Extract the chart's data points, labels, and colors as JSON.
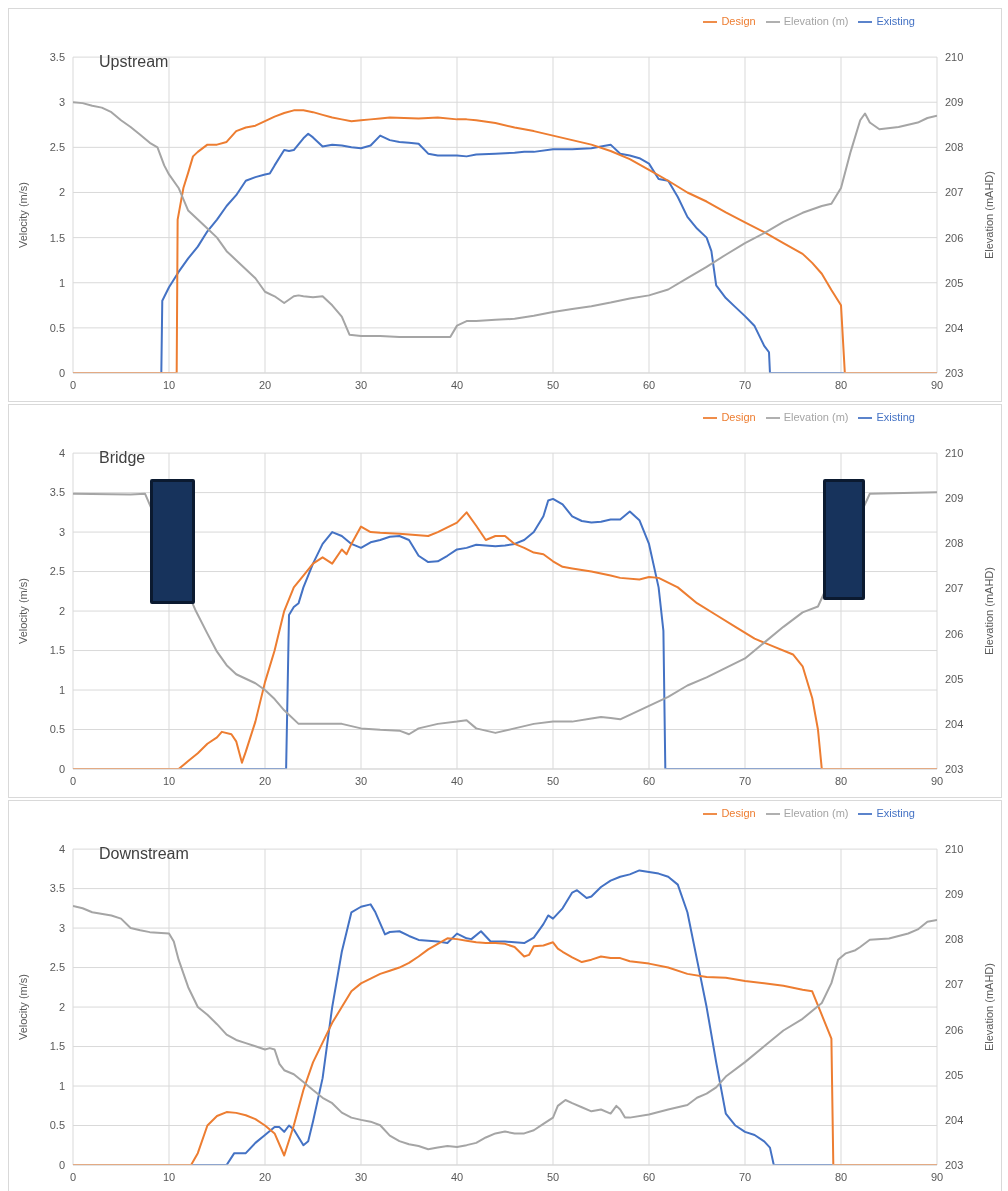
{
  "chart_data": [
    {
      "type": "line",
      "title": "Upstream",
      "ylabel": "Velocity (m/s)",
      "y2label": "Elevation (mAHD)",
      "xlim": [
        0,
        90
      ],
      "xticks": [
        0,
        10,
        20,
        30,
        40,
        50,
        60,
        70,
        80,
        90
      ],
      "ylim": [
        0,
        3.5
      ],
      "yticks": [
        0,
        0.5,
        1,
        1.5,
        2,
        2.5,
        3,
        3.5
      ],
      "y2lim": [
        203,
        210
      ],
      "y2ticks": [
        203,
        204,
        205,
        206,
        207,
        208,
        209,
        210
      ],
      "grid": true,
      "legend": "top right",
      "marker": "none",
      "line_style": "solid",
      "series": [
        {
          "name": "Existing",
          "color": "#4472c4",
          "x": [
            0,
            9.2,
            9.3,
            10,
            11,
            12,
            13,
            14,
            15,
            16,
            17,
            18,
            19,
            20,
            20.5,
            21,
            22,
            22.5,
            23,
            24,
            24.5,
            25,
            26,
            27,
            28,
            29,
            30,
            31,
            32,
            33,
            34,
            35,
            36,
            37,
            38,
            40,
            41,
            42,
            44,
            46,
            47,
            48,
            50,
            52,
            54,
            56,
            57,
            58,
            59,
            60,
            61,
            62,
            63,
            64,
            65,
            66,
            66.5,
            67,
            68,
            69,
            70,
            71,
            72,
            72.5,
            72.6,
            90
          ],
          "values": [
            0,
            0,
            0.8,
            0.95,
            1.12,
            1.27,
            1.4,
            1.57,
            1.7,
            1.85,
            1.97,
            2.13,
            2.17,
            2.2,
            2.21,
            2.3,
            2.47,
            2.46,
            2.47,
            2.6,
            2.65,
            2.61,
            2.51,
            2.53,
            2.52,
            2.5,
            2.49,
            2.52,
            2.63,
            2.58,
            2.56,
            2.55,
            2.54,
            2.43,
            2.41,
            2.41,
            2.4,
            2.42,
            2.43,
            2.44,
            2.45,
            2.45,
            2.48,
            2.48,
            2.49,
            2.53,
            2.43,
            2.41,
            2.38,
            2.32,
            2.15,
            2.13,
            1.95,
            1.73,
            1.6,
            1.5,
            1.35,
            0.97,
            0.83,
            0.73,
            0.63,
            0.52,
            0.3,
            0.23,
            0,
            0
          ]
        },
        {
          "name": "Design",
          "color": "#ed7d31",
          "x": [
            0,
            10.8,
            10.9,
            11.5,
            12,
            12.5,
            13,
            14,
            15,
            16,
            17,
            18,
            19,
            20,
            21,
            22,
            23,
            24,
            25,
            26,
            27,
            28,
            29,
            30,
            31,
            32,
            33,
            36,
            38,
            40,
            41,
            42,
            44,
            46,
            48,
            50,
            52,
            54,
            56,
            58,
            60,
            62,
            64,
            66,
            68,
            70,
            72,
            74,
            76,
            77,
            78,
            79,
            80,
            80.4,
            90
          ],
          "values": [
            0,
            0,
            1.7,
            2.05,
            2.22,
            2.4,
            2.45,
            2.53,
            2.53,
            2.56,
            2.68,
            2.72,
            2.74,
            2.79,
            2.84,
            2.88,
            2.91,
            2.91,
            2.89,
            2.86,
            2.83,
            2.81,
            2.79,
            2.8,
            2.81,
            2.82,
            2.83,
            2.82,
            2.83,
            2.81,
            2.81,
            2.8,
            2.77,
            2.72,
            2.68,
            2.63,
            2.58,
            2.53,
            2.46,
            2.37,
            2.25,
            2.13,
            2.0,
            1.9,
            1.78,
            1.67,
            1.56,
            1.44,
            1.32,
            1.22,
            1.1,
            0.92,
            0.75,
            0,
            0
          ]
        },
        {
          "name": "Elevation (m)",
          "color": "#a5a5a5",
          "axis": "y2",
          "x": [
            0,
            1,
            2,
            3,
            4,
            5,
            6,
            7,
            8,
            8.8,
            9.5,
            10,
            11,
            12,
            13,
            14,
            15,
            16,
            17,
            18,
            19,
            20,
            21,
            22,
            23,
            23.5,
            24,
            25,
            26,
            27,
            28,
            28.8,
            30,
            32,
            34,
            36,
            38,
            39.3,
            40,
            41,
            42,
            44,
            46,
            48,
            50,
            52,
            54,
            56,
            58,
            60,
            62,
            64,
            66,
            68,
            70,
            72,
            74,
            76,
            78,
            79,
            80,
            81,
            82,
            82.5,
            83,
            84,
            86,
            88,
            89,
            90
          ],
          "values": [
            209,
            208.98,
            208.92,
            208.88,
            208.78,
            208.6,
            208.45,
            208.28,
            208.1,
            208.0,
            207.6,
            207.4,
            207.1,
            206.6,
            206.4,
            206.2,
            206.0,
            205.7,
            205.5,
            205.3,
            205.1,
            204.8,
            204.7,
            204.55,
            204.7,
            204.72,
            204.7,
            204.68,
            204.7,
            204.5,
            204.25,
            203.85,
            203.82,
            203.82,
            203.8,
            203.8,
            203.8,
            203.8,
            204.05,
            204.15,
            204.15,
            204.18,
            204.2,
            204.27,
            204.35,
            204.42,
            204.48,
            204.56,
            204.65,
            204.72,
            204.85,
            205.1,
            205.35,
            205.62,
            205.88,
            206.1,
            206.35,
            206.55,
            206.7,
            206.75,
            207.1,
            207.9,
            208.6,
            208.75,
            208.55,
            208.4,
            208.45,
            208.55,
            208.65,
            208.7
          ]
        }
      ]
    },
    {
      "type": "line",
      "title": "Bridge",
      "ylabel": "Velocity (m/s)",
      "y2label": "Elevation (mAHD)",
      "xlim": [
        0,
        90
      ],
      "xticks": [
        0,
        10,
        20,
        30,
        40,
        50,
        60,
        70,
        80,
        90
      ],
      "ylim": [
        0,
        4
      ],
      "yticks": [
        0,
        0.5,
        1,
        1.5,
        2,
        2.5,
        3,
        3.5,
        4
      ],
      "y2lim": [
        203,
        210
      ],
      "y2ticks": [
        203,
        204,
        205,
        206,
        207,
        208,
        209,
        210
      ],
      "grid": true,
      "legend": "top right",
      "marker": "none",
      "line_style": "solid",
      "series": [
        {
          "name": "Existing",
          "color": "#4472c4",
          "x": [
            0,
            22.2,
            22.5,
            23,
            23.5,
            24,
            25,
            26,
            27,
            28,
            29,
            30,
            31,
            32,
            33,
            34,
            35,
            36,
            37,
            38,
            39,
            40,
            41,
            42,
            43,
            44,
            45,
            46,
            47,
            48,
            49,
            49.5,
            50,
            51,
            52,
            53,
            54,
            55,
            56,
            57,
            58,
            59,
            60,
            61,
            61.5,
            61.7,
            90
          ],
          "values": [
            0,
            0,
            1.95,
            2.05,
            2.1,
            2.3,
            2.6,
            2.85,
            3.0,
            2.95,
            2.85,
            2.8,
            2.87,
            2.9,
            2.94,
            2.95,
            2.9,
            2.7,
            2.62,
            2.63,
            2.7,
            2.78,
            2.8,
            2.84,
            2.83,
            2.82,
            2.83,
            2.85,
            2.9,
            3.0,
            3.2,
            3.4,
            3.42,
            3.35,
            3.2,
            3.14,
            3.12,
            3.13,
            3.16,
            3.16,
            3.26,
            3.15,
            2.85,
            2.3,
            1.75,
            0,
            0
          ]
        },
        {
          "name": "Design",
          "color": "#ed7d31",
          "x": [
            0,
            11,
            12,
            13,
            14,
            15,
            15.5,
            16.5,
            17,
            17.6,
            18,
            19,
            20,
            21,
            22,
            23,
            24,
            25,
            26,
            27,
            28,
            28.5,
            29,
            30,
            31,
            32,
            34,
            36,
            37,
            38,
            39,
            40,
            41,
            42,
            43,
            44,
            45,
            46,
            47,
            48,
            49,
            50,
            51,
            52,
            54,
            56,
            57,
            59,
            60,
            61,
            63,
            65,
            67,
            69,
            71,
            73,
            75,
            76,
            77,
            77.6,
            78,
            90
          ],
          "values": [
            0,
            0,
            0.1,
            0.2,
            0.32,
            0.4,
            0.47,
            0.44,
            0.35,
            0.08,
            0.22,
            0.6,
            1.1,
            1.5,
            2.0,
            2.3,
            2.45,
            2.6,
            2.68,
            2.6,
            2.78,
            2.72,
            2.85,
            3.07,
            3.0,
            2.99,
            2.98,
            2.96,
            2.95,
            3.0,
            3.06,
            3.12,
            3.25,
            3.08,
            2.9,
            2.95,
            2.95,
            2.85,
            2.8,
            2.74,
            2.72,
            2.63,
            2.56,
            2.54,
            2.5,
            2.45,
            2.42,
            2.4,
            2.43,
            2.42,
            2.3,
            2.1,
            1.95,
            1.8,
            1.65,
            1.55,
            1.45,
            1.3,
            0.9,
            0.5,
            0,
            0
          ]
        },
        {
          "name": "Elevation (m)",
          "color": "#a5a5a5",
          "axis": "y2",
          "x": [
            0,
            6,
            7.5,
            12.8,
            14,
            15,
            16,
            17,
            18,
            19,
            20,
            21,
            22,
            23.5,
            28,
            30,
            32,
            34,
            35,
            36,
            38,
            40,
            41,
            42,
            44,
            46,
            48,
            50,
            52,
            54,
            55,
            56,
            57,
            58,
            60,
            62,
            64,
            66,
            68,
            70,
            72,
            74,
            76,
            77.6,
            83,
            90
          ],
          "values": [
            209.1,
            209.08,
            209.1,
            206.5,
            206.0,
            205.6,
            205.3,
            205.1,
            205.0,
            204.9,
            204.75,
            204.55,
            204.3,
            204.0,
            204.0,
            203.9,
            203.87,
            203.85,
            203.77,
            203.9,
            204.0,
            204.05,
            204.08,
            203.9,
            203.8,
            203.9,
            204.0,
            204.05,
            204.05,
            204.12,
            204.15,
            204.13,
            204.1,
            204.2,
            204.4,
            204.6,
            204.85,
            205.03,
            205.24,
            205.45,
            205.8,
            206.15,
            206.47,
            206.6,
            209.1,
            209.13
          ]
        }
      ]
    },
    {
      "type": "line",
      "title": "Downstream",
      "ylabel": "Velocity (m/s)",
      "y2label": "Elevation (mAHD)",
      "xlim": [
        0,
        90
      ],
      "xticks": [
        0,
        10,
        20,
        30,
        40,
        50,
        60,
        70,
        80,
        90
      ],
      "ylim": [
        0,
        4
      ],
      "yticks": [
        0,
        0.5,
        1,
        1.5,
        2,
        2.5,
        3,
        3.5,
        4
      ],
      "y2lim": [
        203,
        210
      ],
      "y2ticks": [
        203,
        204,
        205,
        206,
        207,
        208,
        209,
        210
      ],
      "grid": true,
      "legend": "top right",
      "marker": "none",
      "line_style": "solid",
      "series": [
        {
          "name": "Existing",
          "color": "#4472c4",
          "x": [
            0,
            12.5,
            16,
            16.8,
            18,
            19,
            20,
            21,
            21.5,
            22,
            22.5,
            23,
            24,
            24.5,
            25,
            26,
            27,
            28,
            29,
            30,
            31,
            31.5,
            32.5,
            33,
            34,
            35,
            36,
            37,
            38,
            39,
            40,
            41,
            41.5,
            42.5,
            43.5,
            45,
            46,
            47,
            48,
            49,
            49.5,
            50,
            51,
            52,
            52.5,
            53.5,
            54,
            55,
            56,
            57,
            58,
            59,
            60,
            61,
            62,
            63,
            64,
            65,
            66,
            67,
            68,
            69,
            70,
            71,
            72,
            72.6,
            73,
            90
          ],
          "values": [
            0,
            0,
            0,
            0.15,
            0.15,
            0.28,
            0.38,
            0.48,
            0.48,
            0.42,
            0.5,
            0.45,
            0.25,
            0.3,
            0.55,
            1.1,
            2.0,
            2.7,
            3.2,
            3.27,
            3.3,
            3.2,
            2.92,
            2.95,
            2.96,
            2.9,
            2.85,
            2.84,
            2.83,
            2.81,
            2.93,
            2.87,
            2.86,
            2.96,
            2.83,
            2.83,
            2.82,
            2.81,
            2.88,
            3.05,
            3.16,
            3.12,
            3.25,
            3.45,
            3.48,
            3.38,
            3.4,
            3.52,
            3.6,
            3.65,
            3.68,
            3.73,
            3.71,
            3.69,
            3.65,
            3.55,
            3.2,
            2.6,
            2.0,
            1.3,
            0.65,
            0.5,
            0.42,
            0.38,
            0.3,
            0.22,
            0,
            0
          ]
        },
        {
          "name": "Design",
          "color": "#ed7d31",
          "x": [
            0,
            12.3,
            13,
            14,
            15,
            16,
            17,
            18,
            19,
            20,
            21,
            22,
            23,
            24,
            25,
            26,
            27,
            28,
            29,
            30,
            31,
            32,
            33,
            34,
            35,
            36,
            37,
            38,
            39,
            40,
            41,
            42,
            43,
            44,
            45,
            46,
            47,
            47.5,
            48,
            49,
            50,
            50.5,
            51,
            52,
            53,
            54,
            55,
            56,
            57,
            58,
            60,
            62,
            64,
            66,
            68,
            70,
            72,
            74,
            76,
            77,
            78,
            79,
            79.2,
            90
          ],
          "values": [
            0,
            0,
            0.15,
            0.5,
            0.62,
            0.67,
            0.66,
            0.63,
            0.58,
            0.5,
            0.4,
            0.12,
            0.5,
            0.95,
            1.3,
            1.55,
            1.8,
            2.0,
            2.2,
            2.3,
            2.36,
            2.42,
            2.46,
            2.5,
            2.56,
            2.64,
            2.73,
            2.8,
            2.87,
            2.86,
            2.84,
            2.82,
            2.81,
            2.81,
            2.8,
            2.76,
            2.64,
            2.66,
            2.77,
            2.78,
            2.82,
            2.74,
            2.7,
            2.63,
            2.57,
            2.6,
            2.64,
            2.62,
            2.62,
            2.58,
            2.55,
            2.5,
            2.42,
            2.38,
            2.37,
            2.33,
            2.3,
            2.27,
            2.22,
            2.2,
            1.9,
            1.6,
            0,
            0
          ]
        },
        {
          "name": "Elevation (m)",
          "color": "#a5a5a5",
          "axis": "y2",
          "x": [
            0,
            1,
            2,
            4,
            5,
            6,
            7,
            8,
            10,
            10.5,
            11,
            12,
            13,
            14,
            15,
            16,
            17,
            18,
            19,
            20,
            20.5,
            21,
            21.5,
            22,
            23,
            24,
            25,
            26,
            27,
            28,
            29,
            30,
            31,
            32,
            33,
            34,
            35,
            36,
            37,
            38,
            39,
            40,
            41,
            42,
            43,
            44,
            45,
            46,
            47,
            48,
            49,
            50,
            50.5,
            51.3,
            52,
            53,
            54,
            55,
            56,
            56.6,
            57,
            57.5,
            58,
            60,
            62,
            64,
            65,
            66,
            67,
            68,
            70,
            72,
            74,
            76,
            78,
            79,
            79.7,
            80.5,
            81.5,
            82,
            83,
            85,
            87,
            88,
            89,
            90
          ],
          "values": [
            208.74,
            208.69,
            208.6,
            208.53,
            208.46,
            208.25,
            208.2,
            208.16,
            208.13,
            207.95,
            207.55,
            206.94,
            206.5,
            206.33,
            206.12,
            205.89,
            205.77,
            205.7,
            205.63,
            205.56,
            205.59,
            205.56,
            205.24,
            205.1,
            205.01,
            204.84,
            204.66,
            204.49,
            204.37,
            204.16,
            204.05,
            204.0,
            203.96,
            203.88,
            203.65,
            203.53,
            203.46,
            203.42,
            203.35,
            203.39,
            203.42,
            203.4,
            203.44,
            203.49,
            203.61,
            203.7,
            203.74,
            203.7,
            203.7,
            203.77,
            203.91,
            204.05,
            204.31,
            204.44,
            204.37,
            204.28,
            204.19,
            204.23,
            204.14,
            204.31,
            204.23,
            204.05,
            204.05,
            204.12,
            204.23,
            204.33,
            204.49,
            204.58,
            204.72,
            204.96,
            205.28,
            205.63,
            205.98,
            206.24,
            206.59,
            207.03,
            207.55,
            207.69,
            207.76,
            207.83,
            207.99,
            208.02,
            208.13,
            208.22,
            208.39,
            208.43
          ]
        }
      ]
    }
  ]
}
